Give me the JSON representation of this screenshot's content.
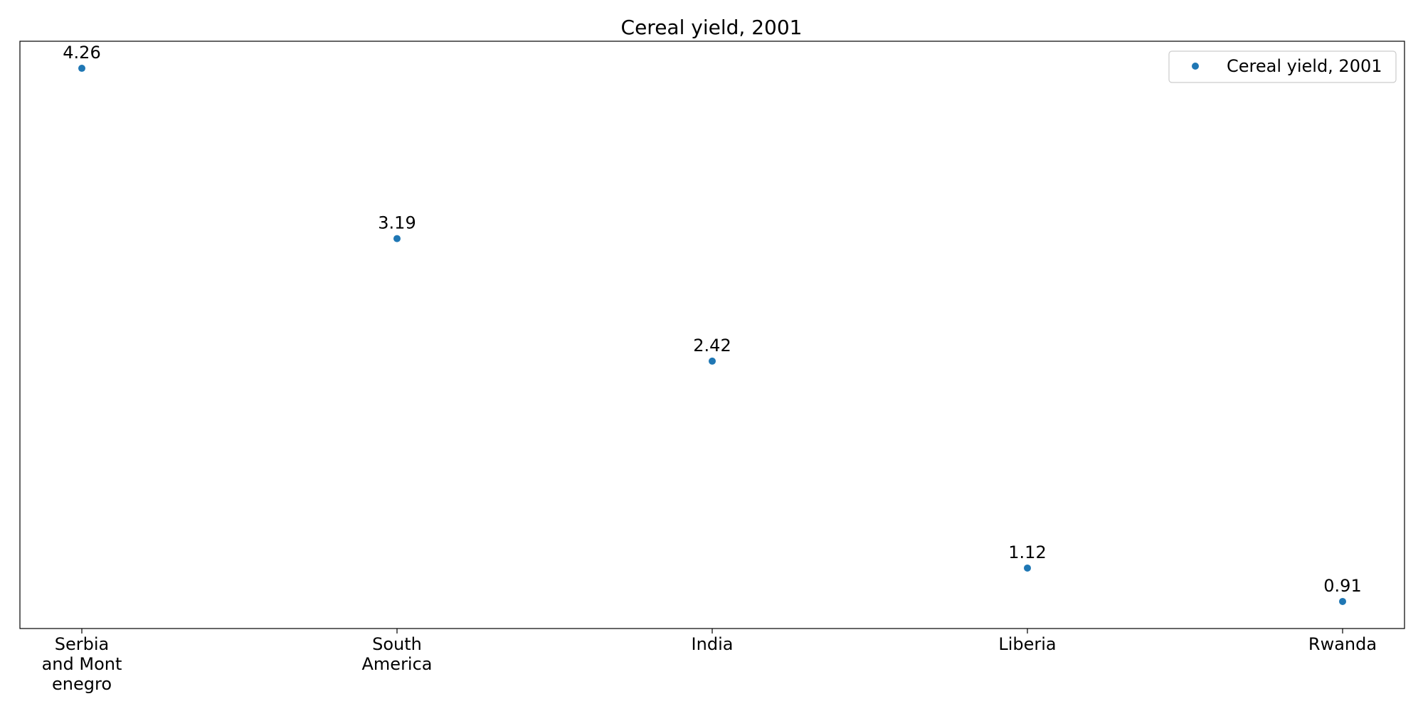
{
  "chart_data": {
    "type": "scatter",
    "title": "Cereal yield, 2001",
    "xlabel": "",
    "ylabel": "",
    "categories": [
      "Serbia and Montenegro",
      "South America",
      "India",
      "Liberia",
      "Rwanda"
    ],
    "tick_labels": [
      [
        "Serbia",
        "and Mont",
        "enegro"
      ],
      [
        "South",
        "America"
      ],
      [
        "India"
      ],
      [
        "Liberia"
      ],
      [
        "Rwanda"
      ]
    ],
    "series": [
      {
        "name": "Cereal yield, 2001",
        "values": [
          4.26,
          3.19,
          2.42,
          1.12,
          0.91
        ],
        "labels": [
          "4.26",
          "3.19",
          "2.42",
          "1.12",
          "0.91"
        ]
      }
    ],
    "ylim": [
      0.74,
      4.43
    ],
    "grid": false,
    "legend_position": "top-right",
    "colors": {
      "series": "#1f77b4",
      "axes": "#000000",
      "legend_border": "#cccccc"
    }
  }
}
